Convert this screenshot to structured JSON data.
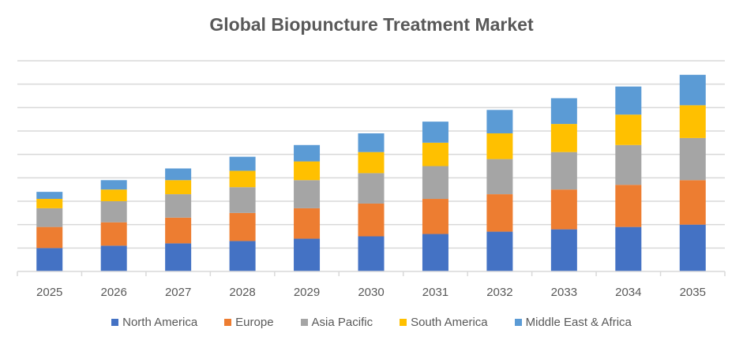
{
  "chart_data": {
    "type": "bar",
    "stacked": true,
    "title": "Global Biopuncture Treatment Market",
    "xlabel": "",
    "ylabel": "",
    "y_tick_labels_shown": false,
    "grid": true,
    "ylim": [
      0,
      9
    ],
    "legend_position": "bottom",
    "categories": [
      "2025",
      "2026",
      "2027",
      "2028",
      "2029",
      "2030",
      "2031",
      "2032",
      "2033",
      "2034",
      "2035"
    ],
    "series": [
      {
        "name": "North America",
        "color": "#4472C4",
        "values": [
          1.0,
          1.1,
          1.2,
          1.3,
          1.4,
          1.5,
          1.6,
          1.7,
          1.8,
          1.9,
          2.0
        ]
      },
      {
        "name": "Europe",
        "color": "#ED7D31",
        "values": [
          0.9,
          1.0,
          1.1,
          1.2,
          1.3,
          1.4,
          1.5,
          1.6,
          1.7,
          1.8,
          1.9
        ]
      },
      {
        "name": "Asia Pacific",
        "color": "#A5A5A5",
        "values": [
          0.8,
          0.9,
          1.0,
          1.1,
          1.2,
          1.3,
          1.4,
          1.5,
          1.6,
          1.7,
          1.8
        ]
      },
      {
        "name": "South America",
        "color": "#FFC000",
        "values": [
          0.4,
          0.5,
          0.6,
          0.7,
          0.8,
          0.9,
          1.0,
          1.1,
          1.2,
          1.3,
          1.4
        ]
      },
      {
        "name": "Middle East & Africa",
        "color": "#5B9BD5",
        "values": [
          0.3,
          0.4,
          0.5,
          0.6,
          0.7,
          0.8,
          0.9,
          1.0,
          1.1,
          1.2,
          1.3
        ]
      }
    ]
  }
}
